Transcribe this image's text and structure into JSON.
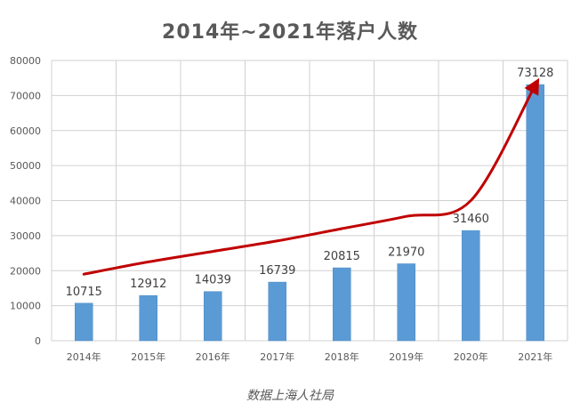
{
  "title": "2014年~2021年落户人数",
  "source_note": "数据上海人社局",
  "colors": {
    "bar": "#5b9bd5",
    "bar_edge": "#4a89c4",
    "trend_arrow": "#c00000",
    "grid": "#d0d0d0",
    "axis_text": "#595959",
    "label_text": "#404040"
  },
  "chart_data": {
    "type": "bar",
    "title": "2014年~2021年落户人数",
    "categories": [
      "2014年",
      "2015年",
      "2016年",
      "2017年",
      "2018年",
      "2019年",
      "2020年",
      "2021年"
    ],
    "values": [
      10715,
      12912,
      14039,
      16739,
      20815,
      21970,
      31460,
      73128
    ],
    "data_labels": [
      "10715",
      "12912",
      "14039",
      "16739",
      "20815",
      "21970",
      "31460",
      "73128"
    ],
    "xlabel": "",
    "ylabel": "",
    "ylim": [
      0,
      80000
    ],
    "yticks": [
      0,
      10000,
      20000,
      30000,
      40000,
      50000,
      60000,
      70000,
      80000
    ],
    "ytick_labels": [
      "0",
      "10000",
      "20000",
      "30000",
      "40000",
      "50000",
      "60000",
      "70000",
      "80000"
    ],
    "grid": true,
    "legend": "none",
    "annotation": {
      "type": "trend-arrow",
      "color": "#c00000",
      "values": [
        19000,
        22500,
        25500,
        28500,
        32000,
        35500,
        40000,
        73000
      ],
      "arrow_at_end": true
    }
  }
}
